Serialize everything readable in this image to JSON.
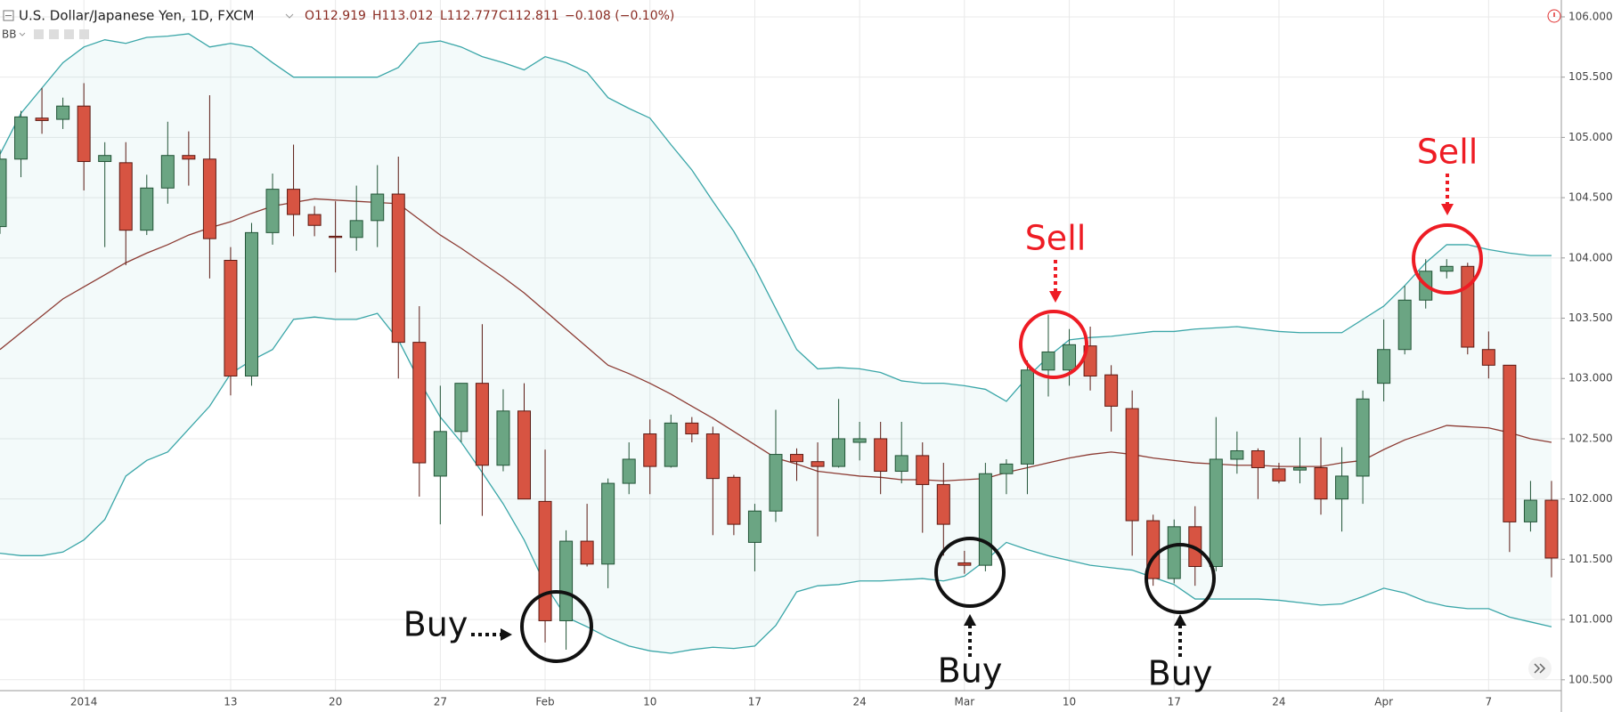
{
  "chart_data": {
    "type": "candlestick",
    "header": {
      "symbol": "U.S. Dollar/Japanese Yen, 1D, FXCM",
      "open": "O112.919",
      "high": "H113.012",
      "low": "L112.777",
      "close": "C112.811",
      "change": "−0.108 (−0.10%)",
      "indicator": "BB"
    },
    "categories": [
      null,
      null,
      null,
      null,
      "2014",
      null,
      null,
      null,
      null,
      null,
      null,
      "13",
      null,
      null,
      null,
      null,
      "20",
      null,
      null,
      null,
      null,
      "27",
      null,
      null,
      null,
      null,
      "Feb",
      null,
      null,
      null,
      null,
      "10",
      null,
      null,
      null,
      null,
      "17",
      null,
      null,
      null,
      null,
      "24",
      null,
      null,
      null,
      null,
      "Mar",
      null,
      null,
      null,
      null,
      "10",
      null,
      null,
      null,
      null,
      "17",
      null,
      null,
      null,
      null,
      "24",
      null,
      null,
      null,
      null,
      "Apr",
      null,
      null,
      null,
      null,
      "7",
      null,
      null,
      null
    ],
    "open": [
      104.26,
      104.82,
      105.16,
      105.15,
      105.26,
      104.8,
      104.79,
      104.23,
      104.58,
      104.85,
      104.82,
      103.98,
      103.02,
      104.21,
      104.57,
      104.36,
      104.18,
      104.17,
      104.31,
      104.53,
      103.3,
      102.19,
      102.56,
      102.96,
      102.28,
      102.73,
      101.98,
      100.99,
      101.65,
      101.46,
      102.13,
      102.54,
      102.27,
      102.63,
      102.54,
      102.18,
      101.64,
      101.9,
      102.37,
      102.31,
      102.27,
      102.47,
      102.5,
      102.23,
      102.36,
      102.12,
      101.47,
      101.45,
      102.21,
      102.29,
      103.07,
      103.07,
      103.27,
      103.03,
      102.75,
      101.82,
      101.34,
      101.77,
      101.44,
      102.33,
      102.4,
      102.25,
      102.24,
      102.26,
      102.0,
      102.19,
      102.96,
      103.24,
      103.65,
      103.89,
      103.93,
      103.24,
      103.11,
      101.81,
      101.99
    ],
    "high": [
      104.9,
      105.22,
      105.41,
      105.33,
      105.45,
      104.96,
      104.96,
      104.69,
      105.13,
      105.05,
      105.35,
      104.09,
      104.29,
      104.7,
      104.94,
      104.43,
      104.47,
      104.6,
      104.77,
      104.84,
      103.6,
      102.94,
      102.96,
      103.45,
      102.91,
      102.96,
      102.41,
      101.74,
      101.96,
      102.17,
      102.47,
      102.66,
      102.7,
      102.68,
      102.6,
      102.2,
      101.96,
      102.74,
      102.42,
      102.47,
      102.83,
      102.64,
      102.64,
      102.64,
      102.47,
      102.3,
      101.57,
      102.3,
      102.33,
      103.15,
      103.53,
      103.41,
      103.43,
      103.11,
      102.9,
      101.87,
      101.83,
      101.94,
      102.68,
      102.56,
      102.42,
      102.3,
      102.51,
      102.51,
      102.43,
      102.9,
      103.49,
      103.77,
      103.99,
      103.99,
      103.96,
      103.39,
      103.11,
      102.15,
      102.15
    ],
    "low": [
      104.2,
      104.67,
      105.03,
      105.07,
      104.56,
      104.09,
      103.94,
      104.19,
      104.45,
      104.6,
      103.83,
      102.86,
      102.94,
      104.11,
      104.18,
      104.18,
      103.88,
      104.06,
      104.09,
      103.0,
      102.02,
      101.79,
      102.47,
      101.86,
      102.23,
      102.0,
      100.81,
      100.75,
      101.44,
      101.26,
      102.04,
      102.04,
      102.26,
      102.47,
      101.7,
      101.7,
      101.4,
      101.81,
      102.15,
      101.69,
      102.26,
      102.32,
      102.04,
      102.13,
      101.72,
      101.53,
      101.38,
      101.4,
      102.04,
      102.04,
      102.85,
      102.94,
      102.9,
      102.56,
      101.53,
      101.28,
      101.3,
      101.28,
      101.4,
      102.21,
      102.0,
      102.13,
      102.13,
      101.87,
      101.73,
      101.96,
      102.81,
      103.2,
      103.58,
      103.83,
      103.2,
      103.0,
      101.56,
      101.73,
      101.35
    ],
    "close": [
      104.82,
      105.17,
      105.14,
      105.26,
      104.8,
      104.85,
      104.23,
      104.58,
      104.85,
      104.82,
      104.16,
      103.02,
      104.21,
      104.57,
      104.36,
      104.27,
      104.17,
      104.31,
      104.53,
      103.3,
      102.3,
      102.56,
      102.96,
      102.28,
      102.73,
      102.0,
      100.99,
      101.65,
      101.46,
      102.13,
      102.33,
      102.27,
      102.63,
      102.54,
      102.17,
      101.79,
      101.9,
      102.37,
      102.31,
      102.27,
      102.5,
      102.5,
      102.23,
      102.36,
      102.12,
      101.79,
      101.45,
      102.21,
      102.29,
      103.07,
      103.22,
      103.28,
      103.02,
      102.77,
      101.82,
      101.34,
      101.77,
      101.44,
      102.33,
      102.4,
      102.26,
      102.15,
      102.26,
      102.0,
      102.19,
      102.83,
      103.24,
      103.65,
      103.89,
      103.93,
      103.26,
      103.11,
      101.81,
      101.99,
      101.51
    ],
    "up_color": "#6ba583",
    "up_border": "#225437",
    "down_color": "#d75442",
    "down_border": "#5b1a13",
    "bands": {
      "color": "#3aa6a8",
      "middle_color": "#8c3b33",
      "fill_color": "#3aa6a8",
      "upper": [
        104.86,
        105.2,
        105.41,
        105.62,
        105.75,
        105.81,
        105.78,
        105.83,
        105.84,
        105.86,
        105.75,
        105.78,
        105.75,
        105.62,
        105.5,
        105.5,
        105.5,
        105.5,
        105.5,
        105.58,
        105.78,
        105.8,
        105.75,
        105.67,
        105.62,
        105.56,
        105.67,
        105.62,
        105.54,
        105.33,
        105.24,
        105.16,
        104.94,
        104.73,
        104.47,
        104.22,
        103.92,
        103.58,
        103.24,
        103.08,
        103.09,
        103.08,
        103.05,
        102.98,
        102.96,
        102.96,
        102.94,
        102.91,
        102.81,
        103.01,
        103.18,
        103.32,
        103.34,
        103.35,
        103.37,
        103.39,
        103.39,
        103.41,
        103.42,
        103.43,
        103.41,
        103.39,
        103.38,
        103.38,
        103.38,
        103.49,
        103.6,
        103.77,
        103.96,
        104.11,
        104.11,
        104.07,
        104.04,
        104.02,
        104.02
      ],
      "middle": [
        103.24,
        103.38,
        103.52,
        103.66,
        103.76,
        103.86,
        103.96,
        104.04,
        104.11,
        104.19,
        104.25,
        104.3,
        104.37,
        104.43,
        104.46,
        104.49,
        104.48,
        104.47,
        104.46,
        104.45,
        104.32,
        104.19,
        104.08,
        103.96,
        103.84,
        103.71,
        103.56,
        103.41,
        103.26,
        103.11,
        103.04,
        102.96,
        102.87,
        102.77,
        102.67,
        102.56,
        102.45,
        102.34,
        102.29,
        102.23,
        102.21,
        102.19,
        102.18,
        102.16,
        102.16,
        102.15,
        102.16,
        102.17,
        102.22,
        102.26,
        102.3,
        102.34,
        102.37,
        102.39,
        102.37,
        102.34,
        102.32,
        102.3,
        102.29,
        102.28,
        102.28,
        102.27,
        102.27,
        102.27,
        102.3,
        102.32,
        102.41,
        102.49,
        102.55,
        102.61,
        102.6,
        102.59,
        102.55,
        102.5,
        102.47
      ],
      "lower": [
        101.55,
        101.53,
        101.53,
        101.56,
        101.66,
        101.83,
        102.19,
        102.32,
        102.39,
        102.58,
        102.77,
        103.04,
        103.15,
        103.24,
        103.49,
        103.51,
        103.49,
        103.49,
        103.54,
        103.32,
        102.98,
        102.68,
        102.47,
        102.22,
        101.96,
        101.66,
        101.29,
        101.02,
        100.94,
        100.85,
        100.78,
        100.74,
        100.72,
        100.75,
        100.77,
        100.76,
        100.78,
        100.95,
        101.23,
        101.28,
        101.29,
        101.32,
        101.32,
        101.33,
        101.34,
        101.32,
        101.36,
        101.49,
        101.64,
        101.58,
        101.53,
        101.49,
        101.45,
        101.43,
        101.41,
        101.35,
        101.29,
        101.17,
        101.17,
        101.17,
        101.17,
        101.16,
        101.14,
        101.12,
        101.13,
        101.19,
        101.26,
        101.22,
        101.15,
        101.11,
        101.09,
        101.09,
        101.02,
        100.98,
        100.94
      ]
    },
    "ylim": [
      100.41,
      106.14
    ],
    "yticks": [
      {
        "value": 100.5,
        "label": "100.500"
      },
      {
        "value": 101,
        "label": "101.000"
      },
      {
        "value": 101.5,
        "label": "101.500"
      },
      {
        "value": 102,
        "label": "102.000"
      },
      {
        "value": 102.5,
        "label": "102.500"
      },
      {
        "value": 103,
        "label": "103.000"
      },
      {
        "value": 103.5,
        "label": "103.500"
      },
      {
        "value": 104,
        "label": "104.000"
      },
      {
        "value": 104.5,
        "label": "104.500"
      },
      {
        "value": 105,
        "label": "105.000"
      },
      {
        "value": 105.5,
        "label": "105.500"
      },
      {
        "value": 106,
        "label": "106.000"
      }
    ],
    "grid": true,
    "annotations": [
      "Buy",
      "Buy",
      "Buy",
      "Sell",
      "Sell"
    ]
  }
}
